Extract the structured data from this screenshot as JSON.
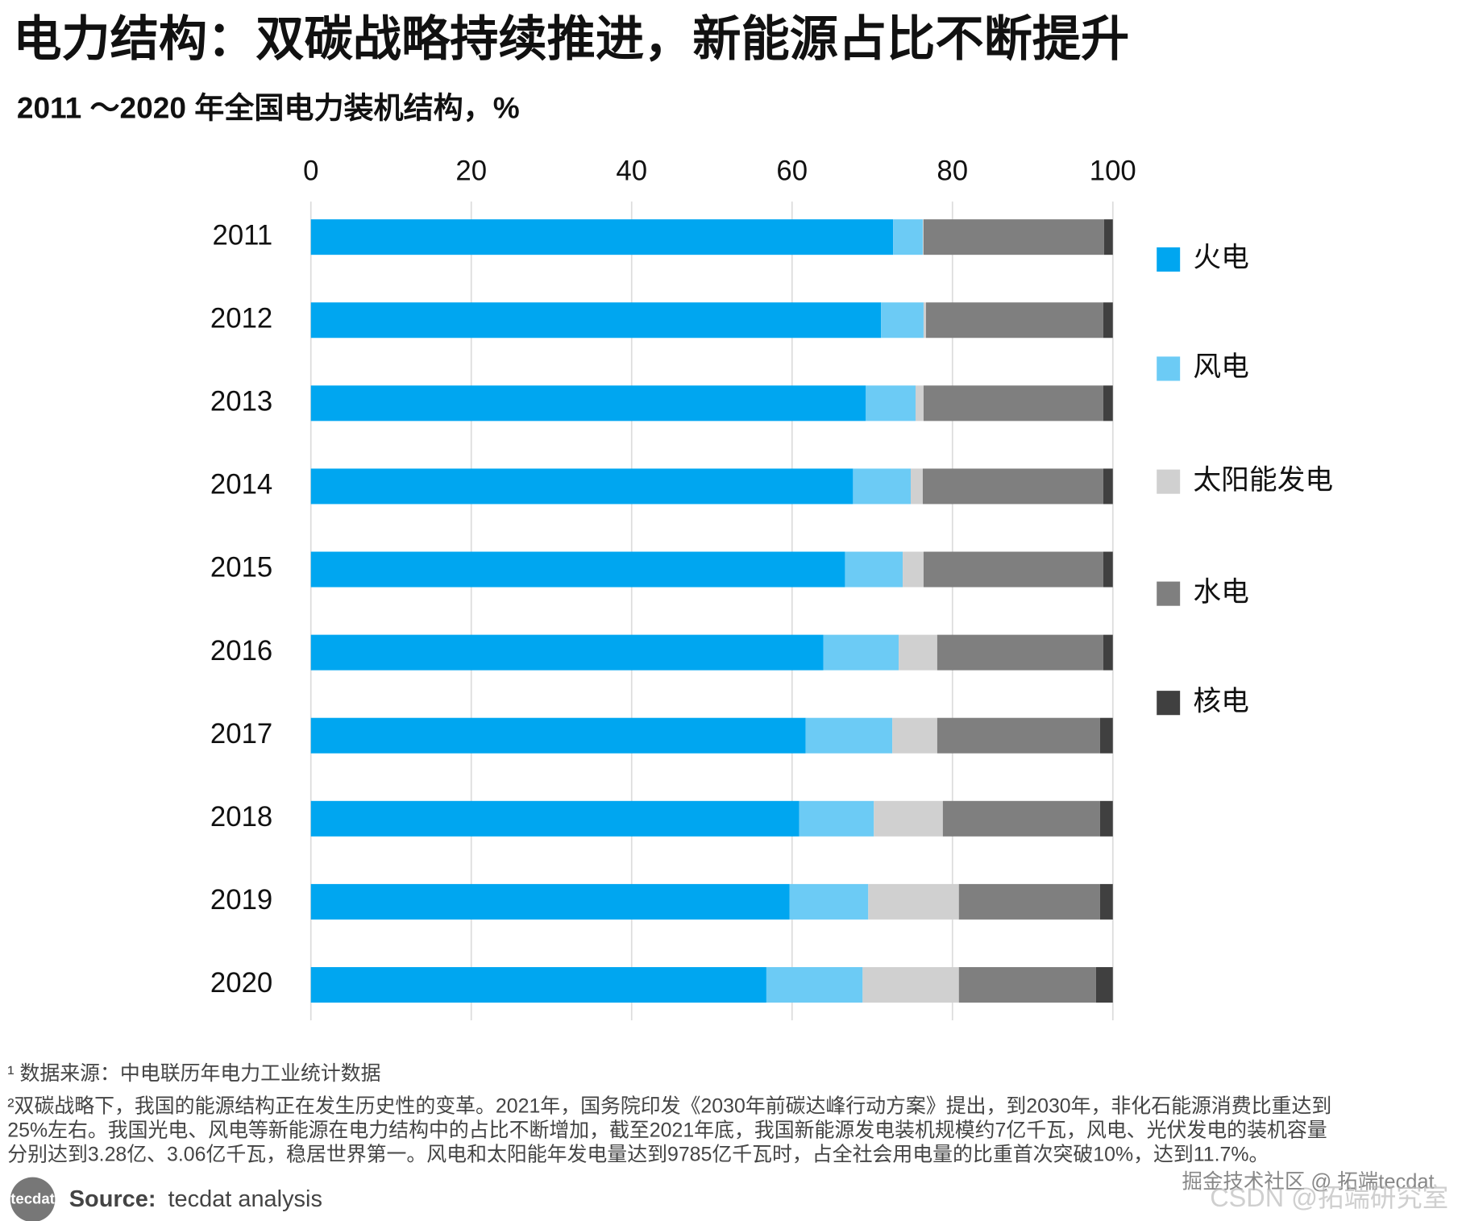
{
  "chart_data": {
    "type": "stacked_barh",
    "title": "电力结构：双碳战略持续推进，新能源占比不断提升",
    "subtitle": "2011 ～2020 年全国电力装机结构，%",
    "categories": [
      "2011",
      "2012",
      "2013",
      "2014",
      "2015",
      "2016",
      "2017",
      "2018",
      "2019",
      "2020"
    ],
    "series": [
      {
        "name": "火电",
        "color": "#00a6f0",
        "values": [
          72.6,
          71.1,
          69.2,
          67.6,
          66.6,
          63.9,
          61.7,
          60.9,
          59.7,
          56.8
        ]
      },
      {
        "name": "风电",
        "color": "#6ccbf5",
        "values": [
          3.7,
          5.3,
          6.2,
          7.2,
          7.2,
          9.4,
          10.8,
          9.3,
          9.8,
          12.0
        ]
      },
      {
        "name": "太阳能发电",
        "color": "#d0d0d0",
        "values": [
          0.1,
          0.3,
          1.0,
          1.5,
          2.6,
          4.8,
          5.6,
          8.6,
          11.3,
          12.0
        ]
      },
      {
        "name": "水电",
        "color": "#7f7f7f",
        "values": [
          22.5,
          22.1,
          22.4,
          22.5,
          22.4,
          20.7,
          20.3,
          19.6,
          17.6,
          17.1
        ]
      },
      {
        "name": "核电",
        "color": "#404040",
        "values": [
          1.1,
          1.2,
          1.2,
          1.2,
          1.2,
          1.2,
          1.6,
          1.6,
          1.6,
          2.1
        ]
      }
    ],
    "xlim": [
      0,
      100
    ],
    "xticks": [
      0,
      20,
      40,
      60,
      80,
      100
    ],
    "grid": true,
    "legend": "right",
    "notes": [
      "¹ 数据来源：中电联历年电力工业统计数据",
      "²双碳战略下，我国的能源结构正在发生历史性的变革。2021年，国务院印发《2030年前碳达峰行动方案》提出，到2030年，非化石能源消费比重达到",
      "25%左右。我国光电、风电等新能源在电力结构中的占比不断增加，截至2021年底，我国新能源发电装机规模约7亿千瓦，风电、光伏发电的装机容量",
      "分别达到3.28亿、3.06亿千瓦，稳居世界第一。风电和太阳能年发电量达到9785亿千瓦时，占全社会用电量的比重首次突破10%，达到11.7%。"
    ],
    "logo": "tecdat",
    "source_label": "Source:",
    "source_text": "tecdat analysis",
    "watermarks": [
      "掘金技术社区 @ 拓端tecdat",
      "CSDN @拓端研究室"
    ]
  }
}
